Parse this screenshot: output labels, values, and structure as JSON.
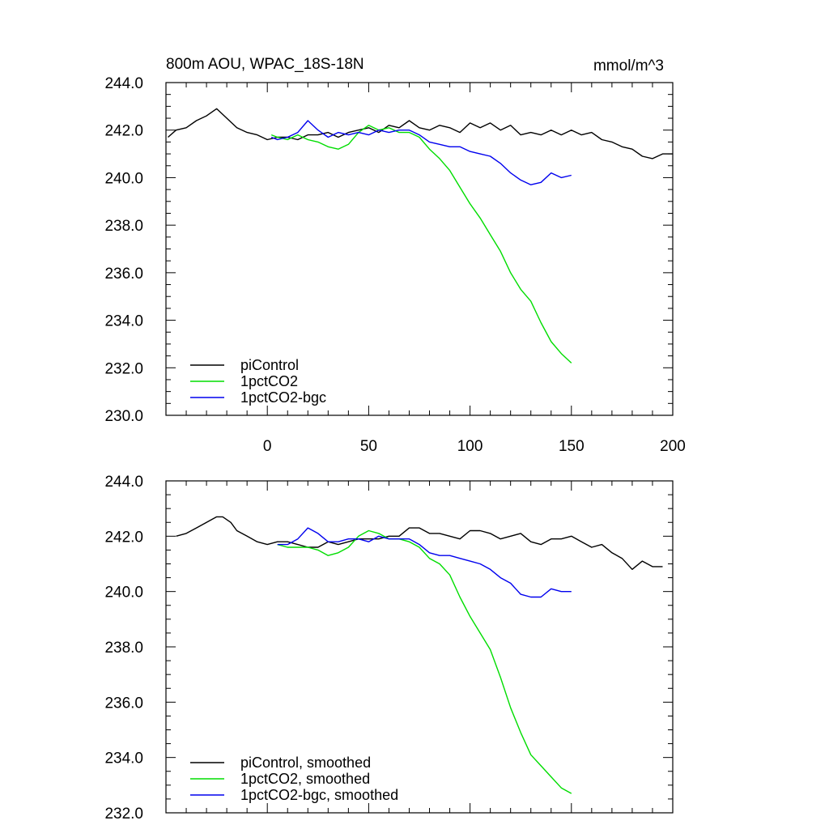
{
  "figure": {
    "title_left": "800m AOU, WPAC_18S-18N",
    "title_right": "mmol/m^3"
  },
  "chart_data": [
    {
      "type": "line",
      "xlim": [
        -50,
        200
      ],
      "ylim": [
        230,
        244
      ],
      "grid": false,
      "legend_position": "bottom-left",
      "x_ticks": [
        0,
        50,
        100,
        150,
        200
      ],
      "x_tick_labels": [
        "0",
        "50",
        "100",
        "150",
        "200"
      ],
      "y_ticks": [
        230,
        232,
        234,
        236,
        238,
        240,
        242,
        244
      ],
      "y_tick_labels": [
        "230.0",
        "232.0",
        "234.0",
        "236.0",
        "238.0",
        "240.0",
        "242.0",
        "244.0"
      ],
      "series": [
        {
          "name": "piControl",
          "color": "#000000",
          "x": [
            -49,
            -45,
            -40,
            -35,
            -30,
            -25,
            -20,
            -15,
            -10,
            -5,
            0,
            5,
            10,
            15,
            20,
            25,
            30,
            35,
            40,
            45,
            50,
            55,
            60,
            65,
            70,
            75,
            80,
            85,
            90,
            95,
            100,
            105,
            110,
            115,
            120,
            125,
            130,
            135,
            140,
            145,
            150,
            155,
            160,
            165,
            170,
            175,
            180,
            185,
            190,
            195,
            200
          ],
          "y": [
            241.7,
            242.0,
            242.1,
            242.4,
            242.6,
            242.9,
            242.5,
            242.1,
            241.9,
            241.8,
            241.6,
            241.7,
            241.7,
            241.6,
            241.8,
            241.8,
            241.9,
            241.7,
            241.9,
            242.0,
            242.1,
            241.9,
            242.2,
            242.1,
            242.4,
            242.1,
            242.0,
            242.2,
            242.1,
            241.9,
            242.3,
            242.1,
            242.3,
            242.0,
            242.2,
            241.8,
            241.9,
            241.8,
            242.0,
            241.8,
            242.0,
            241.8,
            241.9,
            241.6,
            241.5,
            241.3,
            241.2,
            240.9,
            240.8,
            241.0,
            241.0
          ]
        },
        {
          "name": "1pctCO2",
          "color": "#00dd00",
          "x": [
            2,
            5,
            10,
            15,
            20,
            25,
            30,
            35,
            40,
            45,
            50,
            55,
            60,
            65,
            70,
            75,
            80,
            85,
            90,
            95,
            100,
            105,
            110,
            115,
            120,
            125,
            130,
            135,
            140,
            145,
            150
          ],
          "y": [
            241.8,
            241.7,
            241.6,
            241.8,
            241.6,
            241.5,
            241.3,
            241.2,
            241.4,
            241.9,
            242.2,
            242.0,
            242.1,
            241.9,
            241.9,
            241.7,
            241.2,
            240.8,
            240.3,
            239.6,
            238.9,
            238.3,
            237.6,
            236.9,
            236.0,
            235.3,
            234.8,
            233.9,
            233.1,
            232.6,
            232.2
          ]
        },
        {
          "name": "1pctCO2-bgc",
          "color": "#0000ee",
          "x": [
            2,
            5,
            10,
            15,
            20,
            25,
            30,
            35,
            40,
            45,
            50,
            55,
            60,
            65,
            70,
            75,
            80,
            85,
            90,
            95,
            100,
            105,
            110,
            115,
            120,
            125,
            130,
            135,
            140,
            145,
            150
          ],
          "y": [
            241.7,
            241.6,
            241.7,
            241.9,
            242.4,
            242.0,
            241.7,
            241.9,
            241.8,
            241.9,
            241.8,
            242.0,
            241.9,
            242.0,
            242.0,
            241.8,
            241.5,
            241.4,
            241.3,
            241.3,
            241.1,
            241.0,
            240.9,
            240.6,
            240.2,
            239.9,
            239.7,
            239.8,
            240.2,
            240.0,
            240.1
          ]
        }
      ]
    },
    {
      "type": "line",
      "xlim": [
        -50,
        200
      ],
      "ylim": [
        232,
        244
      ],
      "grid": false,
      "legend_position": "bottom-left",
      "x_ticks": [
        0,
        50,
        100,
        150,
        200
      ],
      "y_ticks": [
        232,
        234,
        236,
        238,
        240,
        242,
        244
      ],
      "y_tick_labels": [
        "232.0",
        "234.0",
        "236.0",
        "238.0",
        "240.0",
        "242.0",
        "244.0"
      ],
      "series": [
        {
          "name": "piControl, smoothed",
          "color": "#000000",
          "x": [
            -45,
            -40,
            -35,
            -30,
            -25,
            -22,
            -18,
            -15,
            -10,
            -5,
            0,
            5,
            10,
            15,
            20,
            25,
            30,
            35,
            40,
            45,
            50,
            55,
            60,
            65,
            70,
            75,
            80,
            85,
            90,
            95,
            100,
            105,
            110,
            115,
            120,
            125,
            130,
            135,
            140,
            145,
            150,
            155,
            160,
            165,
            170,
            175,
            180,
            185,
            190,
            195
          ],
          "y": [
            242.0,
            242.1,
            242.3,
            242.5,
            242.7,
            242.7,
            242.5,
            242.2,
            242.0,
            241.8,
            241.7,
            241.8,
            241.8,
            241.7,
            241.6,
            241.6,
            241.8,
            241.7,
            241.8,
            241.9,
            241.9,
            241.9,
            242.0,
            242.0,
            242.3,
            242.3,
            242.1,
            242.1,
            242.0,
            241.9,
            242.2,
            242.2,
            242.1,
            241.9,
            242.0,
            242.1,
            241.8,
            241.7,
            241.9,
            241.9,
            242.0,
            241.8,
            241.6,
            241.7,
            241.4,
            241.2,
            240.8,
            241.1,
            240.9,
            240.9
          ]
        },
        {
          "name": "1pctCO2, smoothed",
          "color": "#00dd00",
          "x": [
            5,
            10,
            15,
            20,
            25,
            30,
            35,
            40,
            45,
            50,
            55,
            60,
            65,
            70,
            75,
            80,
            85,
            90,
            95,
            100,
            105,
            110,
            115,
            120,
            125,
            130,
            135,
            140,
            145,
            150
          ],
          "y": [
            241.7,
            241.6,
            241.6,
            241.6,
            241.5,
            241.3,
            241.4,
            241.6,
            242.0,
            242.2,
            242.1,
            241.9,
            241.9,
            241.8,
            241.6,
            241.2,
            241.0,
            240.6,
            239.8,
            239.1,
            238.5,
            237.9,
            236.9,
            235.8,
            234.9,
            234.1,
            233.7,
            233.3,
            232.9,
            232.7
          ]
        },
        {
          "name": "1pctCO2-bgc, smoothed",
          "color": "#0000ee",
          "x": [
            5,
            10,
            15,
            20,
            25,
            30,
            35,
            40,
            45,
            50,
            55,
            60,
            65,
            70,
            75,
            80,
            85,
            90,
            95,
            100,
            105,
            110,
            115,
            120,
            125,
            130,
            135,
            140,
            145,
            150
          ],
          "y": [
            241.7,
            241.7,
            241.9,
            242.3,
            242.1,
            241.8,
            241.8,
            241.9,
            241.9,
            241.8,
            242.0,
            241.9,
            241.9,
            241.9,
            241.7,
            241.4,
            241.3,
            241.3,
            241.2,
            241.1,
            241.0,
            240.8,
            240.5,
            240.3,
            239.9,
            239.8,
            239.8,
            240.1,
            240.0,
            240.0
          ]
        }
      ]
    }
  ]
}
